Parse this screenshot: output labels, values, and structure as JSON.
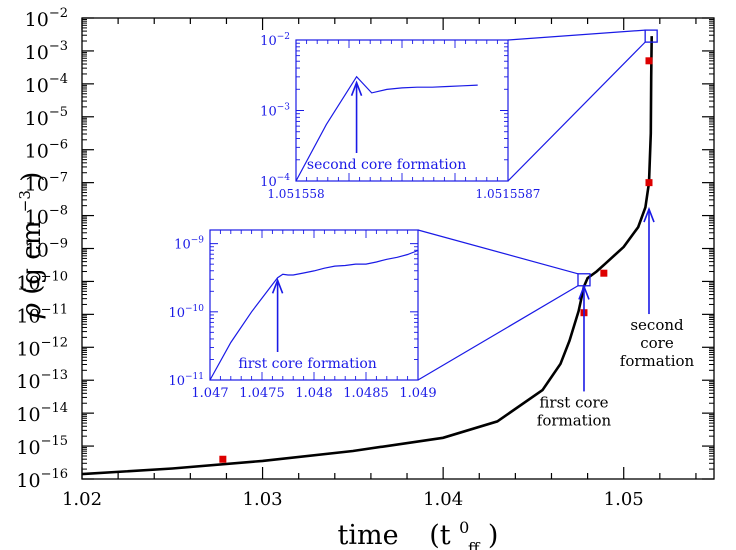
{
  "chart_data": [
    {
      "type": "line",
      "xlabel_main": "time",
      "xlabel_unit": "(t",
      "xlabel_sup": "0",
      "xlabel_sub": "ff",
      "xlabel_close": ")",
      "ylabel_rho": "ρ",
      "ylabel_unit": "(g cm",
      "ylabel_exp": "−3",
      "ylabel_close": ")",
      "xlim": [
        1.02,
        1.055
      ],
      "ylim_log10": [
        -16,
        -2
      ],
      "yscale": "log",
      "x_ticks": [
        "1.02",
        "1.03",
        "1.04",
        "1.05"
      ],
      "y_ticks": [
        {
          "base": "10",
          "exp": "-16"
        },
        {
          "base": "10",
          "exp": "-15"
        },
        {
          "base": "10",
          "exp": "-14"
        },
        {
          "base": "10",
          "exp": "-13"
        },
        {
          "base": "10",
          "exp": "-12"
        },
        {
          "base": "10",
          "exp": "-11"
        },
        {
          "base": "10",
          "exp": "-10"
        },
        {
          "base": "10",
          "exp": "-9"
        },
        {
          "base": "10",
          "exp": "-8"
        },
        {
          "base": "10",
          "exp": "-7"
        },
        {
          "base": "10",
          "exp": "-6"
        },
        {
          "base": "10",
          "exp": "-5"
        },
        {
          "base": "10",
          "exp": "-4"
        },
        {
          "base": "10",
          "exp": "-3"
        },
        {
          "base": "10",
          "exp": "-2"
        }
      ],
      "series": [
        {
          "color": "#000000",
          "x": [
            1.02,
            1.025,
            1.03,
            1.035,
            1.04,
            1.043,
            1.0455,
            1.0465,
            1.047,
            1.0475,
            1.0478,
            1.048,
            1.0485,
            1.049,
            1.05,
            1.0508,
            1.0512,
            1.0514,
            1.0515,
            1.05152,
            1.05155
          ],
          "log10_y": [
            -15.85,
            -15.68,
            -15.45,
            -15.15,
            -14.75,
            -14.25,
            -13.3,
            -12.5,
            -11.8,
            -10.9,
            -10.15,
            -9.9,
            -9.7,
            -9.45,
            -8.95,
            -8.35,
            -7.75,
            -7.0,
            -5.5,
            -3.8,
            -2.55
          ]
        }
      ],
      "markers": {
        "color": "#dd0000",
        "points": [
          {
            "x": 1.0278,
            "log10_y": -15.4
          },
          {
            "x": 1.0478,
            "log10_y": -10.95
          },
          {
            "x": 1.0489,
            "log10_y": -9.75
          },
          {
            "x": 1.0514,
            "log10_y": -7.0
          },
          {
            "x": 1.0514,
            "log10_y": -3.3
          }
        ]
      },
      "annotations": [
        {
          "lines": [
            "first core",
            "formation"
          ],
          "x": 1.0478,
          "log10_y": -10.0
        },
        {
          "lines": [
            "second",
            "core",
            "formation"
          ],
          "x": 1.0514,
          "log10_y": -7.65
        }
      ],
      "zoom_boxes": [
        {
          "x": 1.0478,
          "log10_y": -9.95
        },
        {
          "x": 1.05152,
          "log10_y": -2.55
        }
      ]
    },
    {
      "type": "line",
      "color": "#1a1ae6",
      "xlim": [
        1.047,
        1.049
      ],
      "ylim_log10": [
        -11,
        -8.8
      ],
      "yscale": "log",
      "x_ticks": [
        "1.047",
        "1.0475",
        "1.048",
        "1.0485",
        "1.049"
      ],
      "y_ticks": [
        {
          "base": "10",
          "exp": "-11"
        },
        {
          "base": "10",
          "exp": "-10"
        },
        {
          "base": "10",
          "exp": "-9"
        }
      ],
      "x": [
        1.047,
        1.0472,
        1.0474,
        1.0476,
        1.04765,
        1.0477,
        1.04775,
        1.0478,
        1.0479,
        1.048,
        1.0481,
        1.0482,
        1.0483,
        1.0484,
        1.0485,
        1.0486,
        1.0487,
        1.0488,
        1.0489,
        1.049
      ],
      "log10_y": [
        -11.0,
        -10.45,
        -10.0,
        -9.6,
        -9.5,
        -9.45,
        -9.46,
        -9.46,
        -9.43,
        -9.4,
        -9.36,
        -9.33,
        -9.32,
        -9.3,
        -9.3,
        -9.27,
        -9.23,
        -9.2,
        -9.16,
        -9.1
      ],
      "annotation": {
        "text": "first core formation",
        "x": 1.04765,
        "log10_y": -9.45
      }
    },
    {
      "type": "line",
      "color": "#1a1ae6",
      "xlim": [
        1.051558,
        1.0515587
      ],
      "ylim_log10": [
        -4,
        -2
      ],
      "yscale": "log",
      "x_ticks": [
        "1.051558",
        "1.0515587"
      ],
      "y_ticks": [
        {
          "base": "10",
          "exp": "-4"
        },
        {
          "base": "10",
          "exp": "-3"
        },
        {
          "base": "10",
          "exp": "-2"
        }
      ],
      "x": [
        1.051558,
        1.0515581,
        1.0515582,
        1.05155825,
        1.0515583,
        1.05155835,
        1.0515584,
        1.05155845,
        1.0515585,
        1.05155855,
        1.0515586
      ],
      "log10_y": [
        -4.0,
        -3.2,
        -2.52,
        -2.75,
        -2.7,
        -2.68,
        -2.67,
        -2.67,
        -2.66,
        -2.65,
        -2.64
      ],
      "annotation": {
        "text": "second core formation",
        "x": 1.0515582,
        "log10_y": -2.52
      }
    }
  ]
}
